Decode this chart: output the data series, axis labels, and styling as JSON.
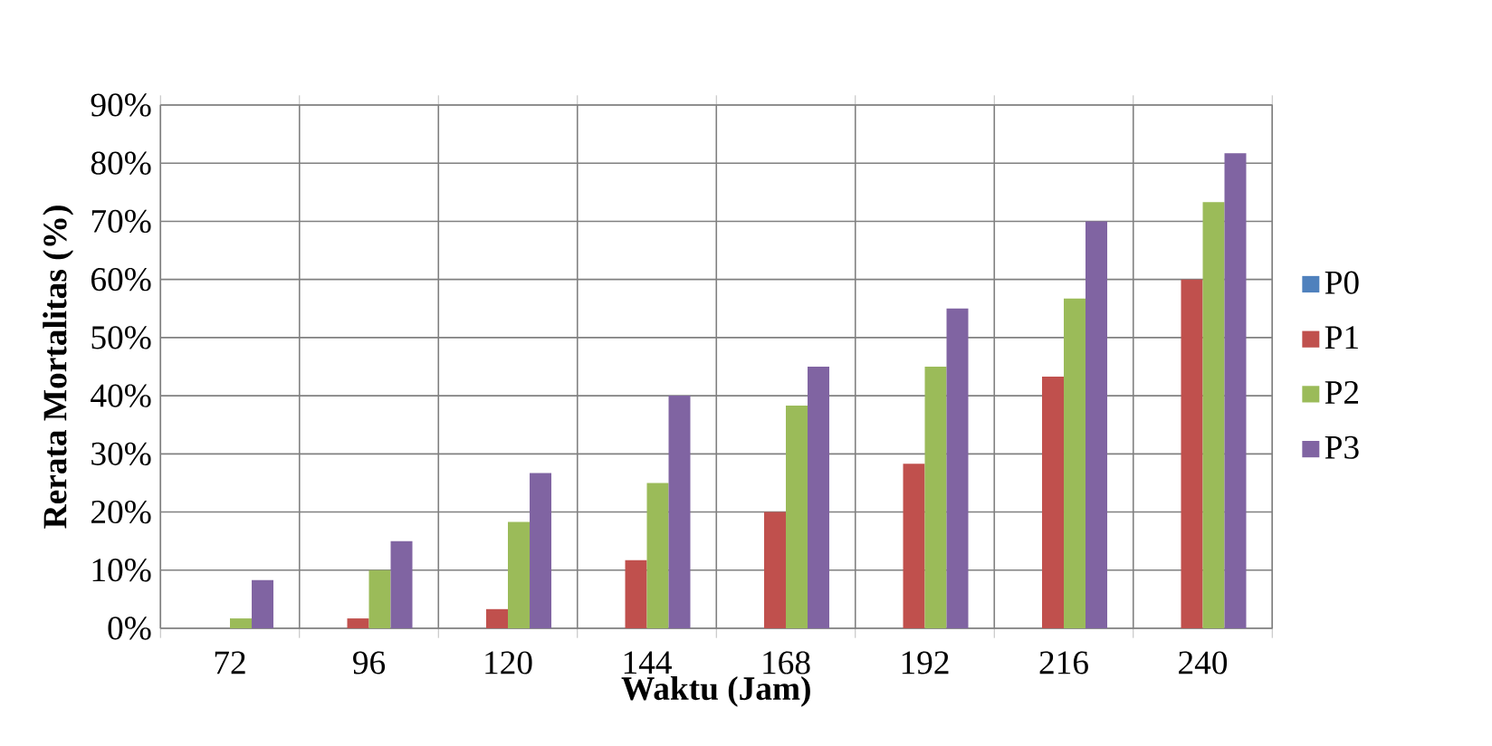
{
  "chart_data": {
    "type": "bar",
    "xlabel": "Waktu (Jam)",
    "ylabel": "Rerata Mortalitas (%)",
    "categories": [
      "72",
      "96",
      "120",
      "144",
      "168",
      "192",
      "216",
      "240"
    ],
    "series": [
      {
        "name": "P0",
        "color": "#4f81bd",
        "values": [
          0,
          0,
          0,
          0,
          0,
          0,
          0,
          0
        ]
      },
      {
        "name": "P1",
        "color": "#c0504d",
        "values": [
          0,
          1.7,
          3.3,
          11.7,
          20,
          28.3,
          43.3,
          60
        ]
      },
      {
        "name": "P2",
        "color": "#9bbb59",
        "values": [
          1.7,
          10,
          18.3,
          25,
          38.3,
          45,
          56.7,
          73.3
        ]
      },
      {
        "name": "P3",
        "color": "#8064a2",
        "values": [
          8.3,
          15,
          26.7,
          40,
          45,
          55,
          70,
          81.7
        ]
      }
    ],
    "ylim": [
      0,
      90
    ],
    "yticks": [
      {
        "value": 0,
        "label": "0%"
      },
      {
        "value": 10,
        "label": "10%"
      },
      {
        "value": 20,
        "label": "20%"
      },
      {
        "value": 30,
        "label": "30%"
      },
      {
        "value": 40,
        "label": "40%"
      },
      {
        "value": 50,
        "label": "50%"
      },
      {
        "value": 60,
        "label": "60%"
      },
      {
        "value": 70,
        "label": "70%"
      },
      {
        "value": 80,
        "label": "80%"
      },
      {
        "value": 90,
        "label": "90%"
      }
    ],
    "grid": true,
    "legend": "right"
  }
}
